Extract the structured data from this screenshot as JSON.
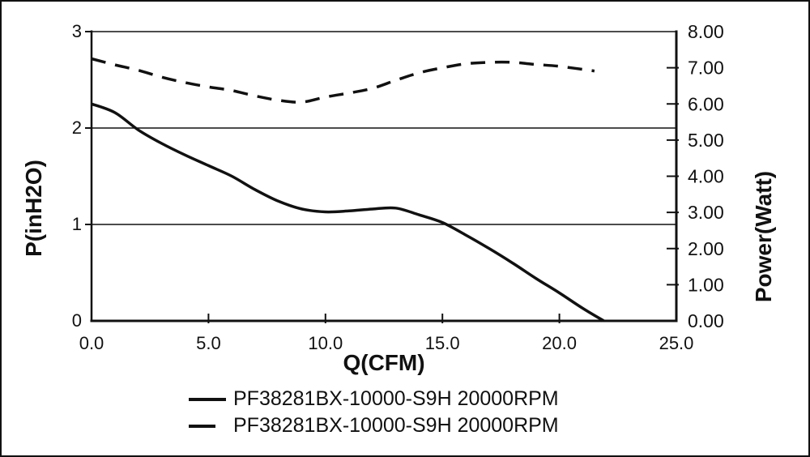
{
  "chart_data": {
    "type": "line",
    "title": "",
    "xlabel": "Q(CFM)",
    "ylabel_left": "P(inH2O)",
    "ylabel_right": "Power(Watt)",
    "x_range": [
      0,
      25
    ],
    "y_left_range": [
      0,
      3
    ],
    "y_right_range": [
      0,
      8
    ],
    "grid": "horizontal-only",
    "legend_position": "bottom-center",
    "x_ticks": [
      {
        "value": 0,
        "label": "0.0"
      },
      {
        "value": 5,
        "label": "5.0"
      },
      {
        "value": 10,
        "label": "10.0"
      },
      {
        "value": 15,
        "label": "15.0"
      },
      {
        "value": 20,
        "label": "20.0"
      },
      {
        "value": 25,
        "label": "25.0"
      }
    ],
    "y_left_ticks": [
      {
        "value": 0,
        "label": "0"
      },
      {
        "value": 1,
        "label": "1"
      },
      {
        "value": 2,
        "label": "2"
      },
      {
        "value": 3,
        "label": "3"
      }
    ],
    "y_right_ticks": [
      {
        "value": 0,
        "label": "0.00"
      },
      {
        "value": 1,
        "label": "1.00"
      },
      {
        "value": 2,
        "label": "2.00"
      },
      {
        "value": 3,
        "label": "3.00"
      },
      {
        "value": 4,
        "label": "4.00"
      },
      {
        "value": 5,
        "label": "5.00"
      },
      {
        "value": 6,
        "label": "6.00"
      },
      {
        "value": 7,
        "label": "7.00"
      },
      {
        "value": 8,
        "label": "8.00"
      }
    ],
    "gridline_values_left": [
      1,
      2
    ],
    "series": [
      {
        "name": "PF38281BX-10000-S9H 20000RPM",
        "role": "static-pressure",
        "axis": "left",
        "line_style": "solid",
        "points": [
          [
            0,
            2.25
          ],
          [
            1,
            2.16
          ],
          [
            2,
            1.98
          ],
          [
            3,
            1.84
          ],
          [
            4,
            1.72
          ],
          [
            5,
            1.61
          ],
          [
            6,
            1.5
          ],
          [
            7,
            1.36
          ],
          [
            8,
            1.24
          ],
          [
            9,
            1.16
          ],
          [
            10,
            1.13
          ],
          [
            11,
            1.14
          ],
          [
            12,
            1.16
          ],
          [
            13,
            1.17
          ],
          [
            14,
            1.1
          ],
          [
            15,
            1.02
          ],
          [
            16,
            0.89
          ],
          [
            17,
            0.75
          ],
          [
            18,
            0.6
          ],
          [
            19,
            0.44
          ],
          [
            20,
            0.29
          ],
          [
            21,
            0.13
          ],
          [
            21.9,
            0.0
          ]
        ]
      },
      {
        "name": "PF38281BX-10000-S9H 20000RPM",
        "role": "power-consumption",
        "axis": "right",
        "line_style": "dashed",
        "points": [
          [
            0,
            7.25
          ],
          [
            1,
            7.08
          ],
          [
            2,
            6.93
          ],
          [
            3,
            6.74
          ],
          [
            4,
            6.59
          ],
          [
            5,
            6.47
          ],
          [
            6,
            6.37
          ],
          [
            7,
            6.22
          ],
          [
            8,
            6.1
          ],
          [
            9,
            6.05
          ],
          [
            10,
            6.19
          ],
          [
            11,
            6.3
          ],
          [
            12,
            6.43
          ],
          [
            13,
            6.65
          ],
          [
            14,
            6.86
          ],
          [
            15,
            7.0
          ],
          [
            16,
            7.11
          ],
          [
            17,
            7.15
          ],
          [
            18,
            7.15
          ],
          [
            19,
            7.09
          ],
          [
            20,
            7.04
          ],
          [
            21.5,
            6.91
          ]
        ]
      }
    ]
  },
  "legend": {
    "items": [
      {
        "label": "PF38281BX-10000-S9H 20000RPM",
        "style": "solid"
      },
      {
        "label": "PF38281BX-10000-S9H 20000RPM",
        "style": "dashed"
      }
    ]
  },
  "colors": {
    "line": "#111111",
    "background": "#ffffff",
    "border": "#111111"
  }
}
